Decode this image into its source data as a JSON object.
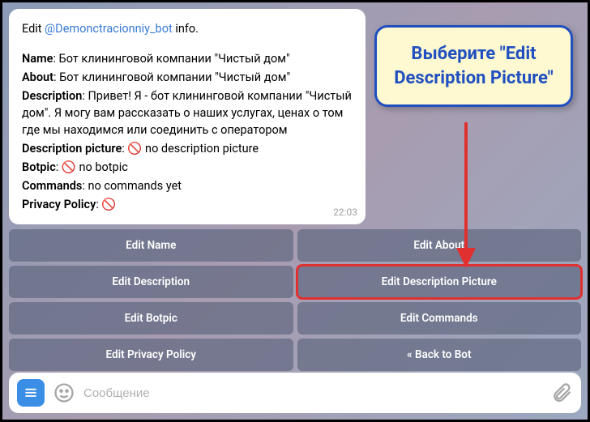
{
  "message": {
    "prefix": "Edit ",
    "bot_handle": "@Demonctracionniy_bot",
    "suffix": " info.",
    "lines": [
      {
        "label": "Name",
        "value": ": Бот клининговой компании \"Чистый дом\""
      },
      {
        "label": "About",
        "value": ": Бот клининговой компании \"Чистый дом\""
      },
      {
        "label": "Description",
        "value": ": Привет! Я - бот клининговой компании \"Чистый дом\". Я могу вам рассказать о наших услугах, ценах о том где мы находимся или соединить с оператором"
      },
      {
        "label": "Description picture",
        "value": ": 🚫 no description picture"
      },
      {
        "label": "Botpic",
        "value": ": 🚫 no botpic"
      },
      {
        "label": "Commands",
        "value": ": no commands yet"
      },
      {
        "label": "Privacy Policy",
        "value": ": 🚫"
      }
    ],
    "timestamp": "22:03"
  },
  "keyboard": [
    [
      {
        "label": "Edit Name",
        "hl": false
      },
      {
        "label": "Edit About",
        "hl": false
      }
    ],
    [
      {
        "label": "Edit Description",
        "hl": false
      },
      {
        "label": "Edit Description Picture",
        "hl": true
      }
    ],
    [
      {
        "label": "Edit Botpic",
        "hl": false
      },
      {
        "label": "Edit Commands",
        "hl": false
      }
    ],
    [
      {
        "label": "Edit Privacy Policy",
        "hl": false
      },
      {
        "label": "« Back to Bot",
        "hl": false
      }
    ]
  ],
  "input": {
    "placeholder": "Сообщение"
  },
  "callout": {
    "text": "Выберите \"Edit Description Picture\""
  },
  "colors": {
    "accent": "#3a8ee6",
    "link": "#3a7bd5",
    "callout_bg": "#fef9d0",
    "callout_border": "#2050c0",
    "highlight": "#e03030"
  }
}
